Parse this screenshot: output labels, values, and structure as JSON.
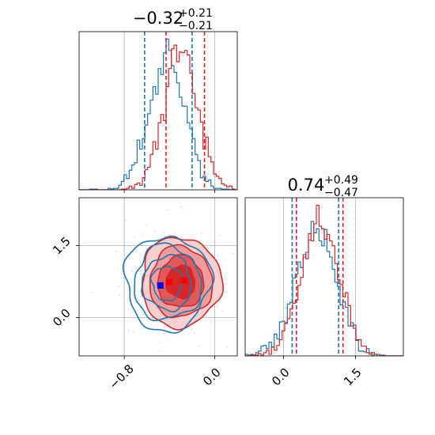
{
  "colors": {
    "blue": "#1f77b4",
    "red": "#d62728",
    "red_fill_dark": "#d62728",
    "red_fill_mid": "#e05a5b",
    "red_fill_light": "#ef9c9c",
    "red_fill_faint": "#f7d0d0",
    "grid": "#b0b0b0",
    "marker_blue": "#0000ff",
    "marker_red": "#ff0000"
  },
  "chart_data": [
    {
      "type": "histogram",
      "panel": "top-left",
      "title": {
        "main": "−0.32",
        "sup": "+0.21",
        "sub": "−0.21"
      },
      "xlim": [
        -1.2,
        0.2
      ],
      "x_ticks": [
        -0.8,
        0.0
      ],
      "tick_labels_visible": false,
      "grid": true,
      "series": [
        {
          "color": "blue",
          "peak": -0.42,
          "width": 0.16,
          "quantiles": [
            -0.62,
            -0.2
          ]
        },
        {
          "color": "red",
          "peak": -0.3,
          "width": 0.15,
          "quantiles": [
            -0.43,
            -0.09
          ]
        }
      ]
    },
    {
      "type": "contour",
      "panel": "bottom-left",
      "xlim": [
        -1.2,
        0.2
      ],
      "ylim": [
        -0.8,
        2.5
      ],
      "x_ticks": [
        -0.8,
        0.0
      ],
      "x_tick_labels": [
        "−0.8",
        "0.0"
      ],
      "y_ticks": [
        0.0,
        1.5
      ],
      "y_tick_labels": [
        "0.0",
        "1.5"
      ],
      "grid": true,
      "series": [
        {
          "color": "blue",
          "center": [
            -0.42,
            0.72
          ],
          "sigma": [
            0.16,
            0.42
          ],
          "markers": [
            [
              -0.48,
              0.67
            ]
          ]
        },
        {
          "color": "red",
          "center": [
            -0.3,
            0.74
          ],
          "sigma": [
            0.15,
            0.4
          ],
          "markers": [
            [
              -0.4,
              0.74
            ],
            [
              -0.27,
              0.77
            ]
          ]
        }
      ]
    },
    {
      "type": "histogram",
      "panel": "bottom-right",
      "title": {
        "main": "0.74",
        "sup": "+0.49",
        "sub": "−0.47"
      },
      "xlim": [
        -0.8,
        2.5
      ],
      "x_ticks": [
        0.0,
        1.5
      ],
      "x_tick_labels": [
        "0.0",
        "1.5"
      ],
      "grid": true,
      "series": [
        {
          "color": "blue",
          "peak": 0.68,
          "width": 0.42,
          "quantiles": [
            0.18,
            1.15
          ]
        },
        {
          "color": "red",
          "peak": 0.76,
          "width": 0.4,
          "quantiles": [
            0.27,
            1.24
          ]
        }
      ]
    }
  ]
}
